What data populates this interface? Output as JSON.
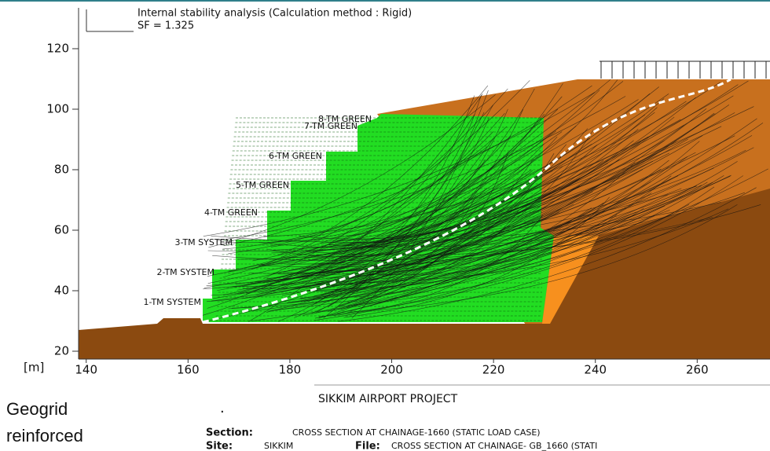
{
  "header": {
    "title": "Internal stability analysis (Calculation method : Rigid)",
    "safety_factor": "SF = 1.325"
  },
  "axes": {
    "unit": "[m]",
    "xlim": [
      138.5,
      274.3
    ],
    "ylim": [
      17.4,
      133.5
    ],
    "xticks": [
      140,
      160,
      180,
      200,
      220,
      240,
      260
    ],
    "yticks": [
      20,
      40,
      60,
      80,
      100,
      120
    ]
  },
  "layers": [
    "8-TM GREEN",
    "7-TM GREEN",
    "6-TM GREEN",
    "5-TM GREEN",
    "4-TM GREEN",
    "3-TM SYSTEM",
    "2-TM SYSTEM",
    "1-TM SYSTEM"
  ],
  "caption": {
    "line1": "Geogrid",
    "line2": "reinforced",
    "mark": "."
  },
  "footer": {
    "project": "SIKKIM AIRPORT PROJECT",
    "section_label": "Section:",
    "section": "CROSS SECTION AT CHAINAGE-1660 (STATIC LOAD CASE)",
    "site_label": "Site:",
    "site": "SIKKIM",
    "file_label": "File:",
    "file": "CROSS SECTION AT CHAINAGE- GB_1660 (STATI"
  }
}
